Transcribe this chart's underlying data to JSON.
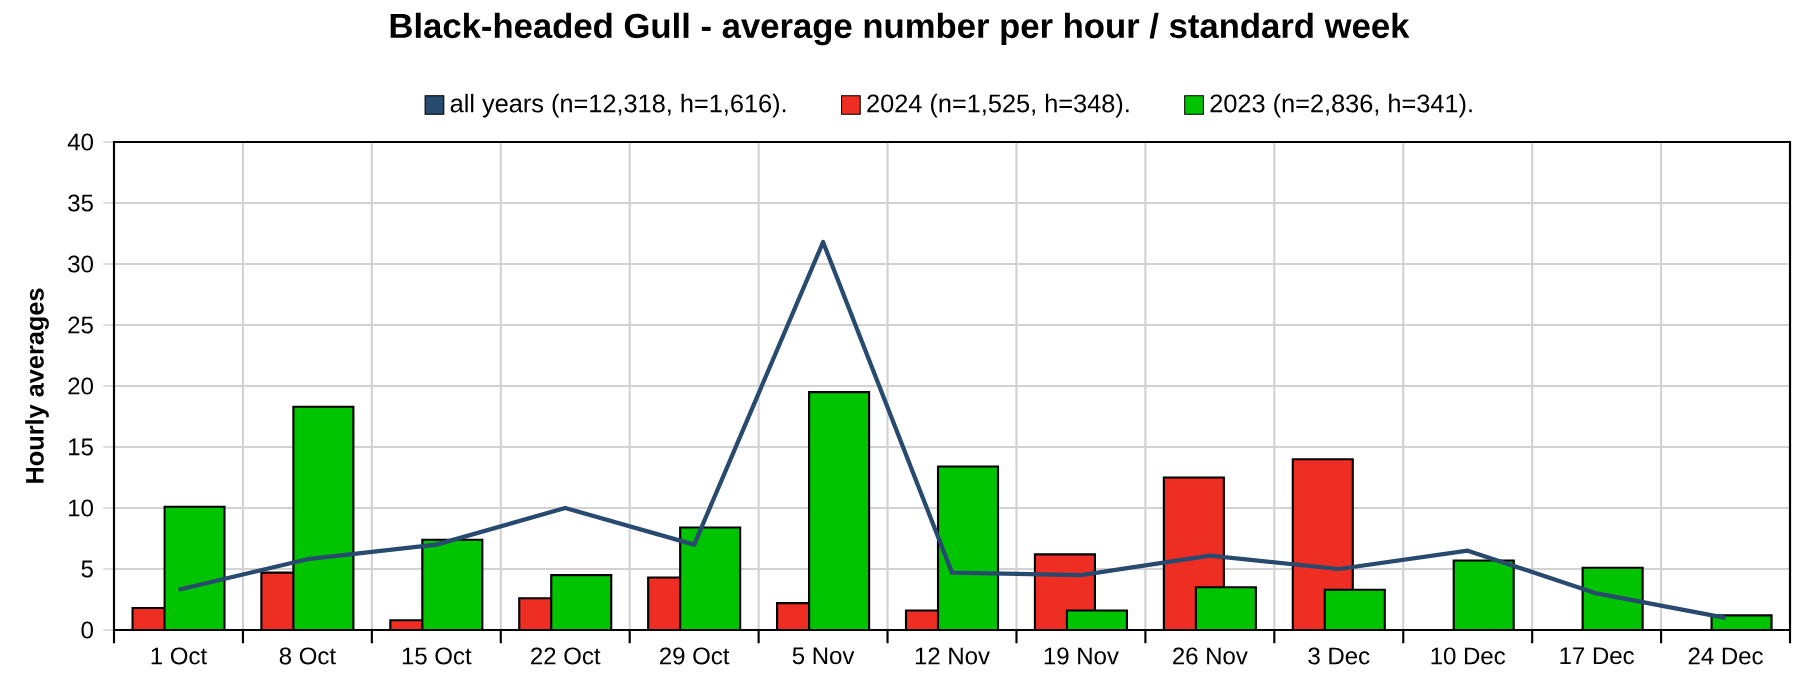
{
  "chart_data": {
    "type": "bar",
    "title": "Black-headed Gull - average number per hour / standard week",
    "ylabel": "Hourly averages",
    "categories": [
      "1 Oct",
      "8 Oct",
      "15 Oct",
      "22 Oct",
      "29 Oct",
      "5 Nov",
      "12 Nov",
      "19 Nov",
      "26 Nov",
      "3 Dec",
      "10 Dec",
      "17 Dec",
      "24 Dec"
    ],
    "series": [
      {
        "name": "all years (n=12,318, h=1,616).",
        "type": "line",
        "color": "#284a6e",
        "values": [
          3.3,
          5.8,
          7.0,
          10.0,
          7.0,
          31.8,
          4.7,
          4.5,
          6.1,
          5.0,
          6.5,
          3.0,
          1.0
        ]
      },
      {
        "name": "2024 (n=1,525, h=348).",
        "color": "#ee2e22",
        "values": [
          1.8,
          4.7,
          0.8,
          2.6,
          4.3,
          2.2,
          1.6,
          6.2,
          12.5,
          14.0,
          null,
          null,
          null
        ]
      },
      {
        "name": "2023 (n=2,836, h=341).",
        "color": "#00c400",
        "values": [
          10.1,
          18.3,
          7.4,
          4.5,
          8.4,
          19.5,
          13.4,
          1.6,
          3.5,
          3.3,
          5.7,
          5.1,
          1.2
        ]
      }
    ],
    "ylim": [
      0,
      40
    ],
    "yticks": [
      0,
      5,
      10,
      15,
      20,
      25,
      30,
      35,
      40
    ],
    "grid": true,
    "legend": "top"
  }
}
